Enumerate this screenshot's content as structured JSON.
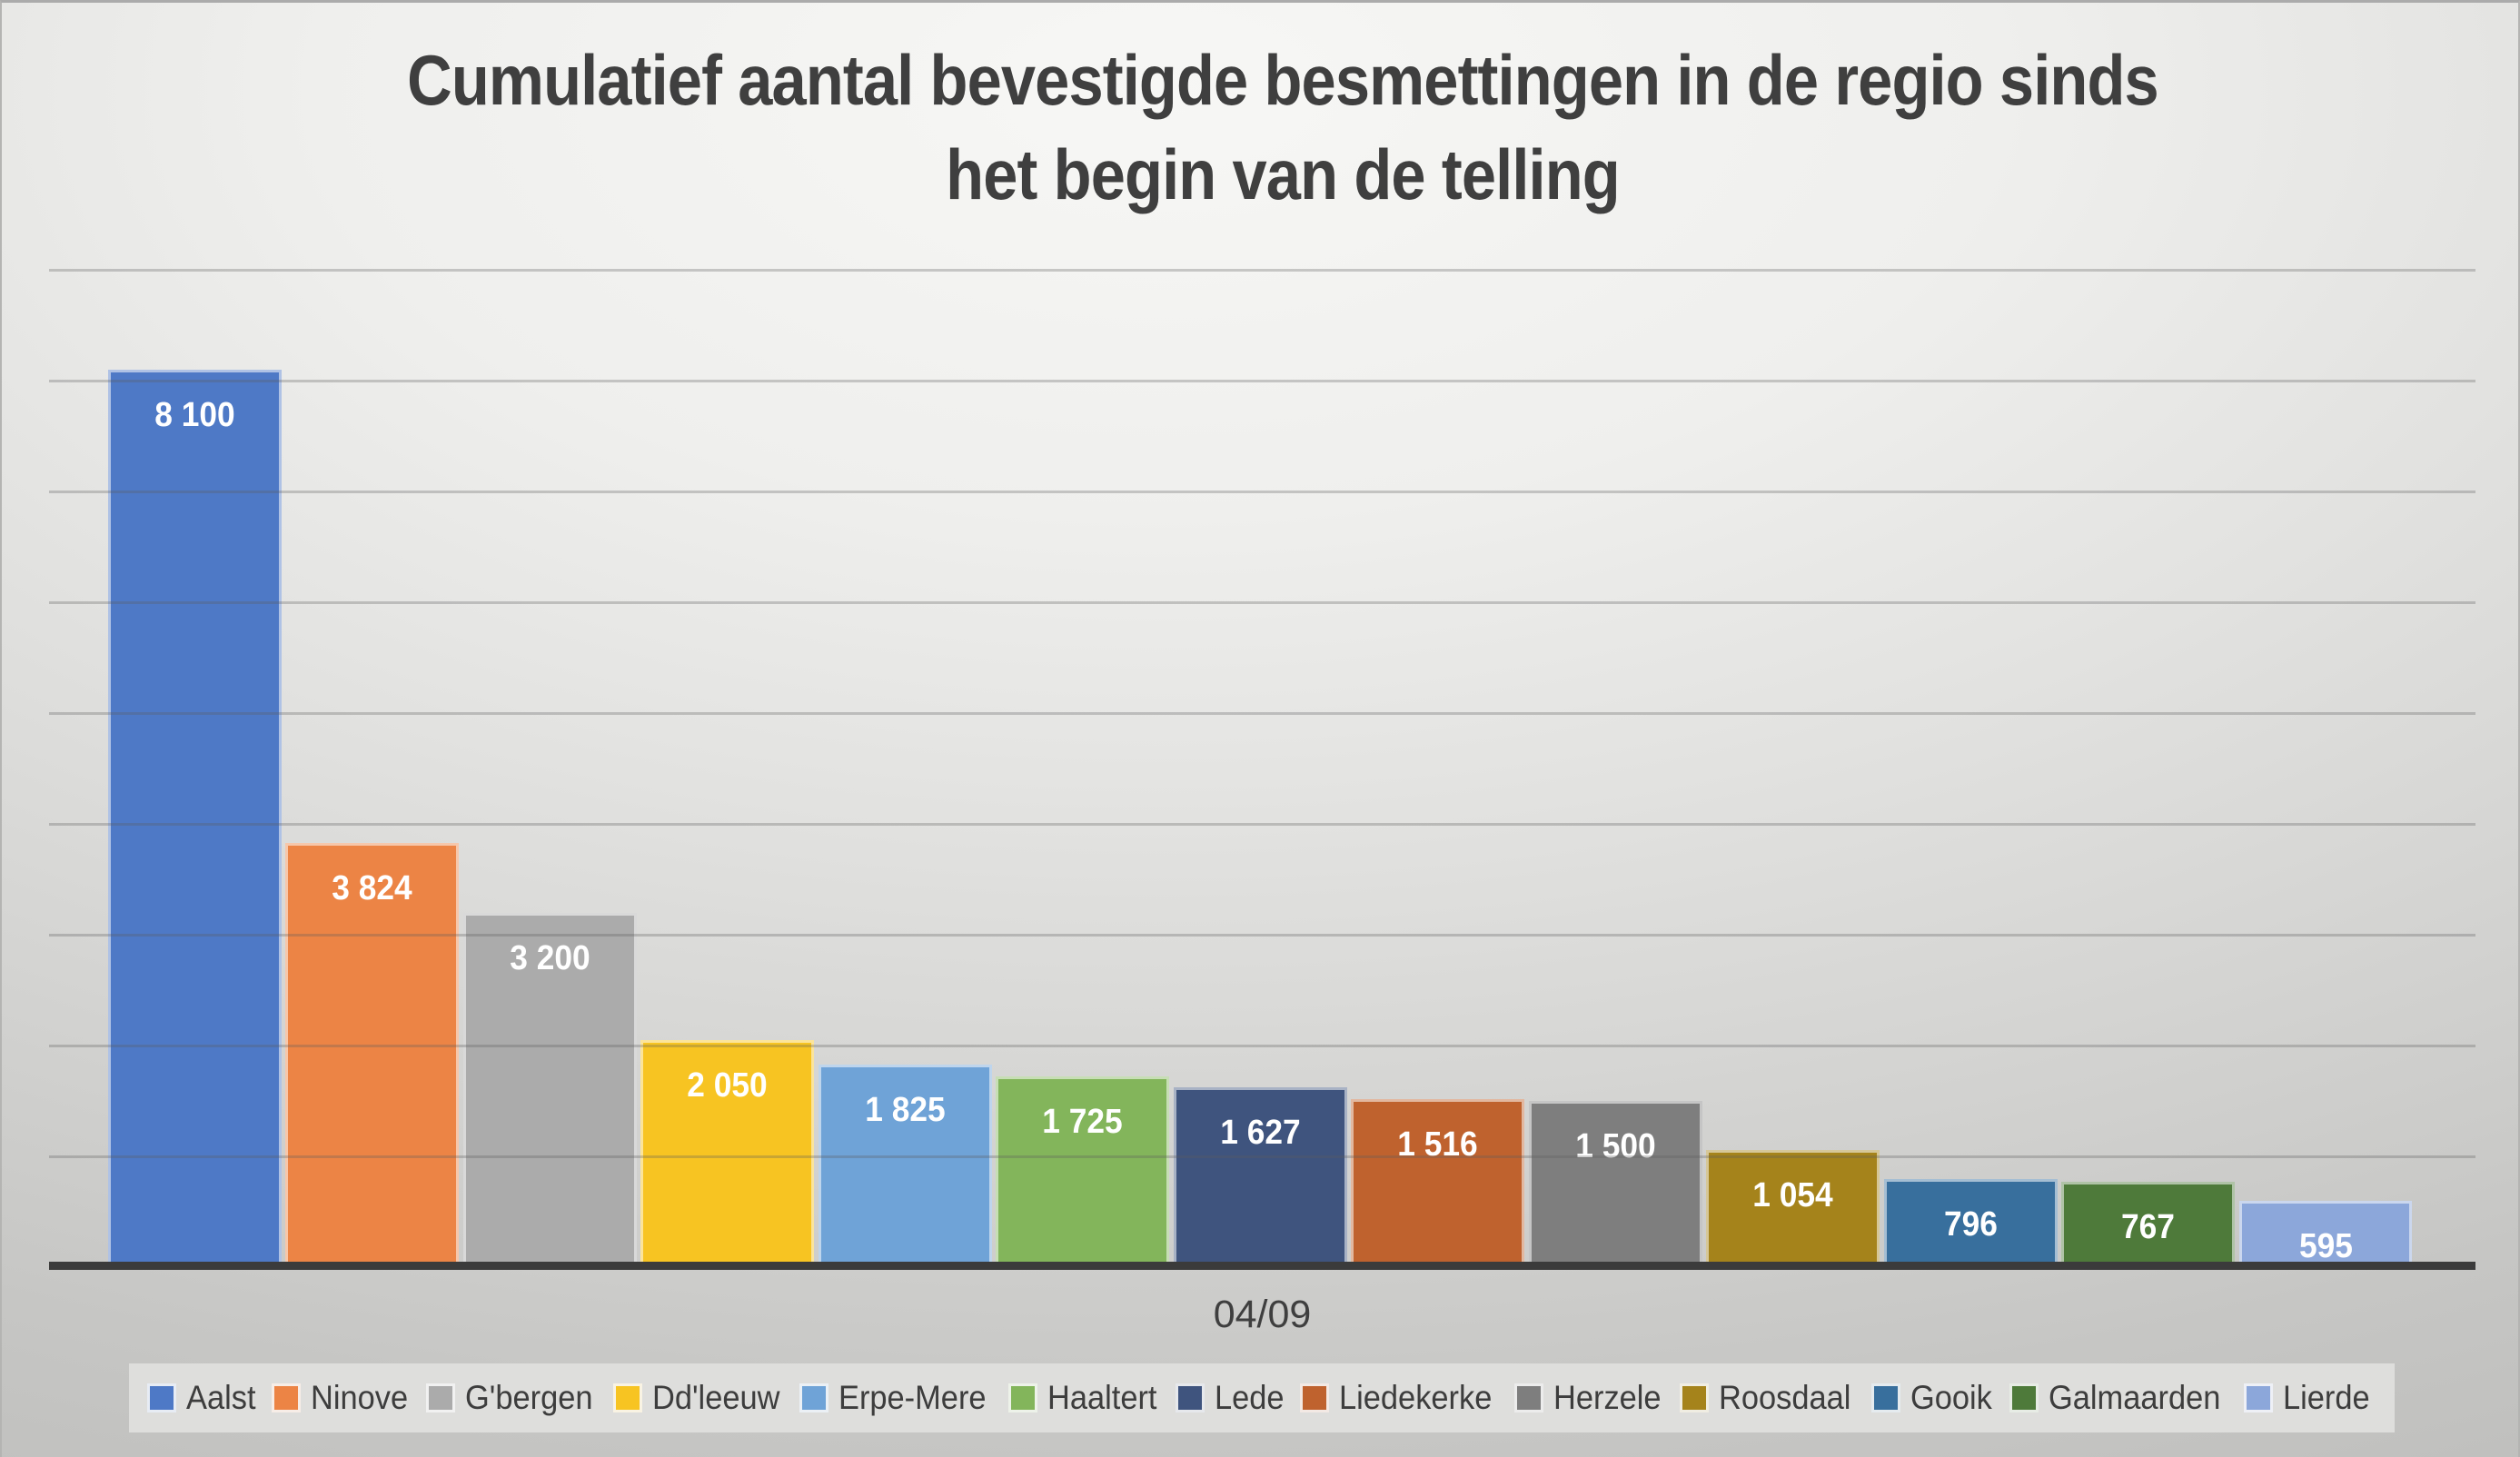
{
  "title": {
    "line1": "Cumulatief aantal bevestigde besmettingen in de regio sinds",
    "line2": "het begin van de telling"
  },
  "chart_data": {
    "type": "bar",
    "title": "Cumulatief aantal bevestigde besmettingen in de regio sinds het begin van de telling",
    "x_category": "04/09",
    "xlabel": "",
    "ylabel": "",
    "ylim": [
      0,
      9000
    ],
    "gridline_interval": 1000,
    "grid": true,
    "y_axis_labels_visible": false,
    "legend_position": "bottom",
    "value_label_position": "inside-end",
    "value_label_color": "#FFFFFF",
    "categories": [
      "Aalst",
      "Ninove",
      "G'bergen",
      "Dd'leeuw",
      "Erpe-Mere",
      "Haaltert",
      "Lede",
      "Liedekerke",
      "Herzele",
      "Roosdaal",
      "Gooik",
      "Galmaarden",
      "Lierde"
    ],
    "values": [
      8100,
      3824,
      3200,
      2050,
      1825,
      1725,
      1627,
      1516,
      1500,
      1054,
      796,
      767,
      595
    ],
    "value_labels": [
      "8 100",
      "3 824",
      "3 200",
      "2 050",
      "1 825",
      "1 725",
      "1 627",
      "1 516",
      "1 500",
      "1 054",
      "796",
      "767",
      "595"
    ],
    "colors": [
      "#4E79C6",
      "#EC8445",
      "#ABABAB",
      "#F7C422",
      "#6FA3D7",
      "#83B55B",
      "#3F547E",
      "#BF622E",
      "#7E7E7E",
      "#A5831B",
      "#386F9D",
      "#4E7A3A",
      "#8CA7DA"
    ]
  },
  "axis": {
    "x_tick_label": "04/09"
  },
  "style": {
    "title_color": "#3F3F3F",
    "axis_line_color": "#3B3B3B",
    "gridline_color": "#ADADAD",
    "legend_background": "#DEDEDC",
    "legend_text_color": "#3D3D3D"
  }
}
